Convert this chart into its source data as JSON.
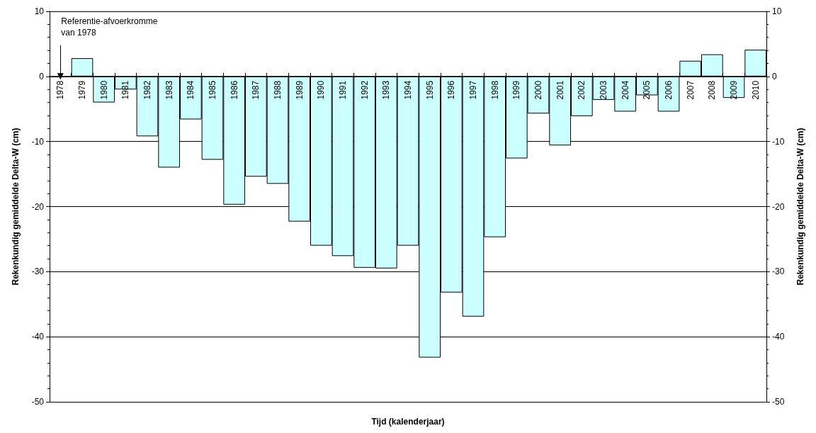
{
  "chart_data": {
    "type": "bar",
    "xlabel": "Tijd (kalenderjaar)",
    "ylabel": "Rekenkundig gemiddelde Delta-W (cm)",
    "y2label": "Rekenkundig gemiddelde Delta-W (cm)",
    "categories": [
      "1978",
      "1979",
      "1980",
      "1981",
      "1982",
      "1983",
      "1984",
      "1985",
      "1986",
      "1987",
      "1988",
      "1989",
      "1990",
      "1991",
      "1992",
      "1993",
      "1994",
      "1995",
      "1996",
      "1997",
      "1998",
      "1999",
      "2000",
      "2001",
      "2002",
      "2003",
      "2004",
      "2005",
      "2006",
      "2007",
      "2008",
      "2009",
      "2010"
    ],
    "values": [
      0,
      2.8,
      -4.0,
      -2.0,
      -9.2,
      -14.0,
      -6.6,
      -12.8,
      -19.7,
      -15.4,
      -16.5,
      -22.3,
      -26.0,
      -27.6,
      -29.4,
      -29.5,
      -26.0,
      -43.2,
      -33.2,
      -36.9,
      -24.7,
      -12.6,
      -5.7,
      -10.6,
      -6.1,
      -3.6,
      -5.4,
      -2.9,
      -5.4,
      2.4,
      3.4,
      -3.3,
      4.1
    ],
    "color": "#ccffff",
    "ylim": [
      -50,
      10
    ],
    "yticks": [
      -50,
      -40,
      -30,
      -20,
      -10,
      0,
      10
    ],
    "y2lim": [
      -50,
      10
    ],
    "y2ticks": [
      -50,
      -40,
      -30,
      -20,
      -10,
      0,
      10
    ],
    "grid": "y",
    "annotations": [
      {
        "text": "Referentie-afvoerkromme\nvan 1978",
        "x": "1978",
        "y": 0
      }
    ]
  }
}
